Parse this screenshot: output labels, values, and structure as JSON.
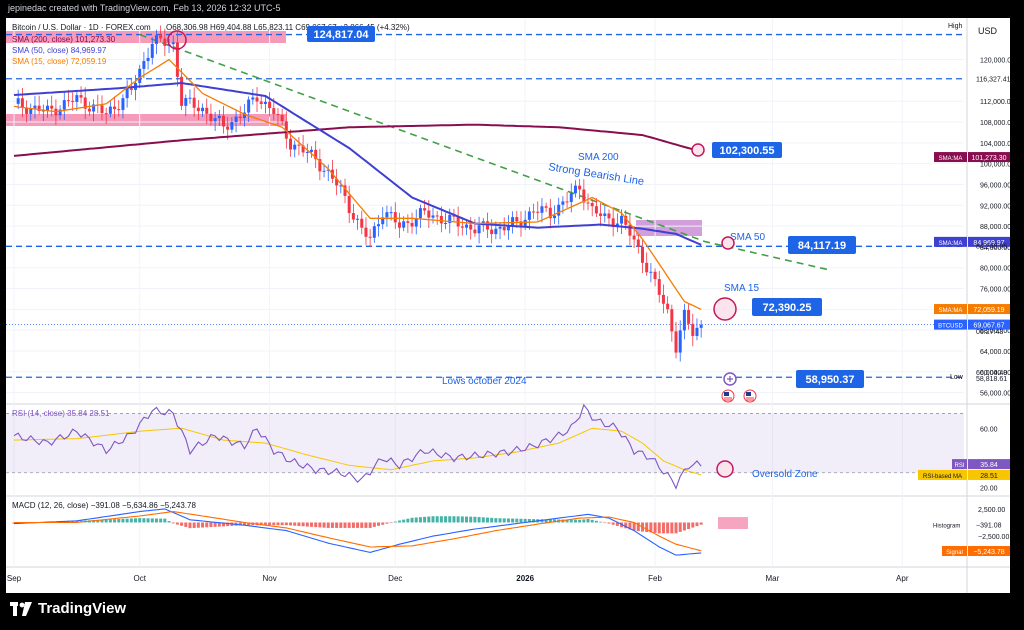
{
  "credit": "jepinedac created with TradingView.com, Feb 13, 2026 12:32 UTC-5",
  "brand": "TradingView",
  "header": {
    "symbol": "Bitcoin / U.S. Dollar · 1D · FOREX.com",
    "ohlc": "O68,306.98 H69,404.88 L65,823.11 C69,067.67 +2,866.45 (+4.32%)",
    "sma200": "SMA (200, close)  101,273.30",
    "sma50": "SMA (50, close)  84,969.97",
    "sma15": "SMA (15, close)  72,059.19",
    "currency": "USD",
    "high_tag": "High",
    "low_tag": "Low"
  },
  "rsi_legend": "RSI (14, close)  35.84  28.51",
  "macd_legend": "MACD (12, 26, close)  −391.08  −5,634.86  −5,243.78",
  "annotations": {
    "sma200": "SMA 200",
    "bearish": "Strong Bearish Line",
    "sma50": "SMA 50",
    "sma15": "SMA 15",
    "lows": "Lows october 2024",
    "oversold": "Oversold Zone"
  },
  "callouts": {
    "top": "124,817.04",
    "sma200": "102,300.55",
    "sma50": "84,117.19",
    "sma15": "72,390.25",
    "low": "58,950.37"
  },
  "colors": {
    "bull": "#2962ff",
    "bear": "#f23645",
    "sma200": "#880e4f",
    "sma50": "#3f3fd1",
    "sma15": "#f57c00",
    "trend": "#43a047",
    "rsi": "#7e57c2",
    "rsi_ma": "#f7c600",
    "macd": "#2962ff",
    "signal": "#ff6d00",
    "callout": "#1e64e6"
  },
  "chart_data": {
    "type": "candlestick",
    "price_range": [
      54000,
      128000
    ],
    "price_ticks": [
      56000,
      60000,
      64000,
      68000,
      72000,
      76000,
      80000,
      84000,
      88000,
      92000,
      96000,
      100000,
      104000,
      108000,
      112000,
      120000
    ],
    "price_tick_labels": [
      "56,000.00",
      "60,000.00",
      "64,000.00",
      "68,000.00",
      "72,000.00",
      "76,000.00",
      "80,000.00",
      "84,000.00",
      "88,000.00",
      "92,000.00",
      "96,000.00",
      "100,000.00",
      "104,000.00",
      "108,000.00",
      "112,000.00",
      "120,000.00"
    ],
    "x_labels": [
      {
        "label": "Sep",
        "index": 0
      },
      {
        "label": "Oct",
        "index": 30
      },
      {
        "label": "Nov",
        "index": 61
      },
      {
        "label": "Dec",
        "index": 91
      },
      {
        "label": "2026",
        "index": 122
      },
      {
        "label": "Feb",
        "index": 153
      },
      {
        "label": "Mar",
        "index": 181
      },
      {
        "label": "Apr",
        "index": 212
      }
    ],
    "anchors": [
      [
        0,
        111500
      ],
      [
        8,
        110000
      ],
      [
        15,
        112500
      ],
      [
        22,
        109500
      ],
      [
        28,
        114000
      ],
      [
        33,
        123500
      ],
      [
        38,
        123000
      ],
      [
        40,
        112000
      ],
      [
        45,
        110500
      ],
      [
        50,
        107000
      ],
      [
        55,
        110000
      ],
      [
        58,
        113000
      ],
      [
        62,
        110000
      ],
      [
        66,
        104000
      ],
      [
        72,
        101000
      ],
      [
        78,
        95000
      ],
      [
        83,
        87000
      ],
      [
        85,
        85500
      ],
      [
        88,
        91000
      ],
      [
        92,
        88000
      ],
      [
        98,
        90500
      ],
      [
        104,
        89000
      ],
      [
        110,
        87500
      ],
      [
        115,
        87500
      ],
      [
        120,
        88500
      ],
      [
        124,
        91000
      ],
      [
        128,
        90500
      ],
      [
        132,
        93000
      ],
      [
        135,
        95500
      ],
      [
        138,
        91000
      ],
      [
        141,
        89500
      ],
      [
        145,
        89000
      ],
      [
        147,
        86500
      ],
      [
        150,
        82000
      ],
      [
        152,
        78500
      ],
      [
        156,
        71500
      ],
      [
        158,
        65000
      ],
      [
        160,
        70500
      ],
      [
        162,
        67500
      ],
      [
        164,
        69000
      ]
    ],
    "sma200_anchors": [
      [
        0,
        101500
      ],
      [
        40,
        104500
      ],
      [
        80,
        107000
      ],
      [
        110,
        107500
      ],
      [
        130,
        107000
      ],
      [
        150,
        105500
      ],
      [
        164,
        102300
      ]
    ],
    "sma50_anchors": [
      [
        0,
        113200
      ],
      [
        25,
        114500
      ],
      [
        40,
        115500
      ],
      [
        60,
        113000
      ],
      [
        80,
        103000
      ],
      [
        95,
        93500
      ],
      [
        110,
        88500
      ],
      [
        125,
        87700
      ],
      [
        140,
        88300
      ],
      [
        150,
        87500
      ],
      [
        158,
        86500
      ],
      [
        164,
        84400
      ]
    ],
    "sma15_anchors": [
      [
        0,
        111000
      ],
      [
        10,
        110000
      ],
      [
        22,
        111500
      ],
      [
        30,
        116500
      ],
      [
        37,
        120000
      ],
      [
        45,
        113500
      ],
      [
        55,
        109500
      ],
      [
        64,
        107000
      ],
      [
        75,
        99000
      ],
      [
        85,
        89500
      ],
      [
        95,
        89500
      ],
      [
        110,
        88500
      ],
      [
        125,
        88800
      ],
      [
        138,
        93500
      ],
      [
        145,
        90500
      ],
      [
        150,
        85500
      ],
      [
        155,
        79500
      ],
      [
        160,
        73500
      ],
      [
        164,
        72000
      ]
    ],
    "bearish_trendline": [
      [
        30,
        124800
      ],
      [
        165,
        85000
      ],
      [
        195,
        79500
      ]
    ],
    "levels": [
      {
        "name": "high-level",
        "value": 124817.04
      },
      {
        "name": "resistance-level",
        "value": 116327.41
      },
      {
        "name": "sma50-level",
        "value": 84117.19
      },
      {
        "name": "low-level",
        "value": 58950.37
      }
    ],
    "price_boxes": [
      {
        "label": "116,327.41",
        "value": 116327.41,
        "style": "line"
      },
      {
        "label": "101,273.30",
        "value": 101273.3,
        "tag": "SMA:MA",
        "color": "#880e4f"
      },
      {
        "label": "84,969.97",
        "value": 84969.97,
        "tag": "SMA:MA",
        "color": "#3f3fd1"
      },
      {
        "label": "84,248.96",
        "value": 84248.96,
        "style": "line"
      },
      {
        "label": "72,059.19",
        "value": 72059.19,
        "tag": "SMA:MA",
        "color": "#f57c00"
      },
      {
        "label": "69,067.67",
        "value": 69067.67,
        "tag": "BTCUSD",
        "color": "#2962ff"
      },
      {
        "label": "06:27:43",
        "value": 67800,
        "style": "sub"
      },
      {
        "label": "60,004.48",
        "value": 60004.48,
        "style": "line"
      },
      {
        "label": "58,818.61",
        "value": 58818.61,
        "style": "line"
      }
    ],
    "rsi": {
      "range": [
        15,
        75
      ],
      "ticks": [
        20,
        60
      ],
      "upper": 70,
      "lower": 30,
      "value": 35.84,
      "ma": 28.51,
      "anchors": [
        [
          0,
          55
        ],
        [
          8,
          50
        ],
        [
          15,
          58
        ],
        [
          22,
          45
        ],
        [
          28,
          56
        ],
        [
          33,
          72
        ],
        [
          38,
          70
        ],
        [
          42,
          45
        ],
        [
          48,
          55
        ],
        [
          55,
          48
        ],
        [
          58,
          60
        ],
        [
          62,
          45
        ],
        [
          66,
          38
        ],
        [
          72,
          32
        ],
        [
          78,
          30
        ],
        [
          83,
          25
        ],
        [
          88,
          40
        ],
        [
          92,
          35
        ],
        [
          98,
          45
        ],
        [
          105,
          40
        ],
        [
          112,
          42
        ],
        [
          118,
          44
        ],
        [
          124,
          48
        ],
        [
          130,
          55
        ],
        [
          133,
          60
        ],
        [
          136,
          74
        ],
        [
          139,
          65
        ],
        [
          144,
          60
        ],
        [
          148,
          45
        ],
        [
          152,
          40
        ],
        [
          156,
          28
        ],
        [
          158,
          22
        ],
        [
          161,
          35
        ],
        [
          164,
          35.8
        ]
      ],
      "ma_anchors": [
        [
          0,
          52
        ],
        [
          15,
          53
        ],
        [
          30,
          58
        ],
        [
          40,
          60
        ],
        [
          50,
          52
        ],
        [
          60,
          50
        ],
        [
          70,
          42
        ],
        [
          80,
          35
        ],
        [
          90,
          32
        ],
        [
          100,
          38
        ],
        [
          110,
          40
        ],
        [
          120,
          44
        ],
        [
          130,
          50
        ],
        [
          138,
          60
        ],
        [
          145,
          58
        ],
        [
          150,
          50
        ],
        [
          155,
          38
        ],
        [
          160,
          32
        ],
        [
          164,
          28.5
        ]
      ]
    },
    "macd": {
      "range": [
        -8000,
        4500
      ],
      "ticks": [
        2500,
        -2500
      ],
      "tick_labels": [
        "2,500.00",
        "−2,500.00"
      ],
      "hist_label": "Histogram",
      "hist_value": "−391.08",
      "signal_label": "Signal",
      "signal_value": "−5,243.78",
      "macd_anchors": [
        [
          0,
          -200
        ],
        [
          15,
          300
        ],
        [
          30,
          2000
        ],
        [
          36,
          2500
        ],
        [
          42,
          500
        ],
        [
          55,
          -500
        ],
        [
          65,
          -1500
        ],
        [
          75,
          -3800
        ],
        [
          85,
          -5500
        ],
        [
          92,
          -4000
        ],
        [
          100,
          -2500
        ],
        [
          110,
          -1200
        ],
        [
          120,
          -200
        ],
        [
          130,
          800
        ],
        [
          137,
          1500
        ],
        [
          142,
          800
        ],
        [
          148,
          -1500
        ],
        [
          154,
          -4500
        ],
        [
          158,
          -6000
        ],
        [
          164,
          -5600
        ]
      ],
      "signal_anchors": [
        [
          0,
          0
        ],
        [
          15,
          0
        ],
        [
          30,
          1200
        ],
        [
          38,
          2000
        ],
        [
          45,
          1200
        ],
        [
          55,
          0
        ],
        [
          65,
          -1000
        ],
        [
          75,
          -2800
        ],
        [
          85,
          -4500
        ],
        [
          95,
          -4300
        ],
        [
          105,
          -3000
        ],
        [
          115,
          -1500
        ],
        [
          125,
          -300
        ],
        [
          135,
          800
        ],
        [
          142,
          1000
        ],
        [
          148,
          0
        ],
        [
          154,
          -2500
        ],
        [
          158,
          -4000
        ],
        [
          164,
          -5200
        ]
      ]
    }
  }
}
